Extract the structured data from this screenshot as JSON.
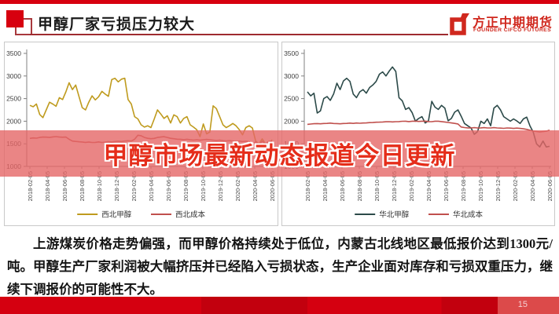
{
  "header": {
    "title": "甲醇厂家亏损压力较大",
    "logo_name": "方正中期期货",
    "logo_subtitle": "FOUNDER CIFCO FUTURES",
    "accent_color": "#d7000f"
  },
  "overlay": {
    "text": "甲醇市场最新动态报道今日更新",
    "text_color": "#e52d1a",
    "band_color": "rgba(229,103,103,0.80)"
  },
  "body": {
    "paragraph": "上游煤炭价格走势偏强，而甲醇价格持续处于低位，内蒙古北线地区最低报价达到1300元/吨。甲醇生产厂家利润被大幅挤压并已经陷入亏损状态，生产企业面对库存和亏损双重压力，继续下调报价的可能性不大。"
  },
  "footer": {
    "page_number": "15"
  },
  "chart_data": [
    {
      "type": "line",
      "title": "",
      "xlabel": "",
      "ylabel": "",
      "ylim": [
        1000,
        3500
      ],
      "yticks": [
        3500,
        3000,
        2500,
        2000,
        1500,
        1000
      ],
      "grid": false,
      "legend_position": "bottom",
      "x": [
        "2018-02-05",
        "2018-04-05",
        "2018-06-05",
        "2018-08-05",
        "2018-10-05",
        "2018-12-05",
        "2019-02-05",
        "2019-04-05",
        "2019-06-05",
        "2019-08-05",
        "2019-10-05",
        "2019-12-05",
        "2020-02-05",
        "2020-04-05",
        "2020-06-05"
      ],
      "series": [
        {
          "name": "西北甲醇",
          "color": "#bf9b1e",
          "values": [
            2350,
            2320,
            2380,
            2150,
            2080,
            2250,
            2420,
            2380,
            2330,
            2520,
            2480,
            2650,
            2850,
            2700,
            2800,
            2550,
            2300,
            2250,
            2420,
            2560,
            2470,
            2540,
            2660,
            2600,
            2550,
            2920,
            2950,
            2870,
            2930,
            2950,
            2480,
            2380,
            2100,
            2050,
            1920,
            1870,
            1900,
            1860,
            2050,
            2250,
            2160,
            2060,
            2120,
            1960,
            2140,
            2100,
            1960,
            2060,
            2100,
            1920,
            1870,
            1810,
            1660,
            1940,
            1720,
            1760,
            2340,
            2280,
            2100,
            1920,
            1860,
            1900,
            1950,
            1900,
            1810,
            1700,
            1860,
            1900,
            1850,
            1560,
            1500,
            1610,
            1500,
            1460,
            1590
          ]
        },
        {
          "name": "西北成本",
          "color": "#c0504d",
          "values": [
            1620,
            1630,
            1625,
            1640,
            1650,
            1648,
            1640,
            1652,
            1660,
            1650,
            1645,
            1650,
            1600,
            1560,
            1552,
            1545,
            1540,
            1532,
            1540,
            1530,
            1532,
            1542,
            1530,
            1538,
            1548,
            1540,
            1550,
            1558,
            1550,
            1560,
            1568,
            1560,
            1600,
            1690,
            1678,
            1640,
            1622,
            1612,
            1620,
            1640,
            1650,
            1658,
            1640,
            1622,
            1612,
            1602,
            1600,
            1592,
            1600,
            1590,
            1582,
            1590,
            1580,
            1590,
            1598,
            1590,
            1580,
            1572,
            1580,
            1570,
            1562,
            1570,
            1560,
            1552,
            1560,
            1550,
            1558,
            1550,
            1470,
            1548,
            1480,
            1555,
            1500,
            1552,
            1558
          ]
        }
      ]
    },
    {
      "type": "line",
      "title": "",
      "xlabel": "",
      "ylabel": "",
      "ylim": [
        1000,
        3500
      ],
      "yticks": [
        3500,
        3000,
        2500,
        2000,
        1500,
        1000
      ],
      "grid": false,
      "legend_position": "bottom",
      "x": [
        "2018-02-05",
        "2018-04-05",
        "2018-06-05",
        "2018-08-05",
        "2018-10-05",
        "2018-12-05",
        "2019-02-05",
        "2019-04-05",
        "2019-06-05",
        "2019-08-05",
        "2019-10-05",
        "2019-12-05",
        "2020-02-05",
        "2020-04-05",
        "2020-06-05"
      ],
      "series": [
        {
          "name": "华北甲醇",
          "color": "#2c4a49",
          "values": [
            2650,
            2560,
            2620,
            2180,
            2230,
            2500,
            2545,
            2460,
            2600,
            2840,
            2700,
            2890,
            2950,
            2880,
            2600,
            2520,
            2650,
            2700,
            2620,
            2745,
            2800,
            2880,
            3040,
            3090,
            3000,
            3110,
            3200,
            3100,
            2520,
            2450,
            2260,
            2300,
            2190,
            2000,
            2060,
            2100,
            1960,
            2010,
            2440,
            2310,
            2260,
            2350,
            2290,
            2010,
            2060,
            2200,
            2250,
            2110,
            1950,
            1900,
            1850,
            1710,
            1770,
            2000,
            1950,
            2050,
            1900,
            2290,
            2350,
            2250,
            2100,
            2050,
            2000,
            2050,
            2005,
            1950,
            2050,
            2090,
            1900,
            1760,
            1500,
            1430,
            1560,
            1430,
            1445
          ]
        },
        {
          "name": "华北成本",
          "color": "#c0504d",
          "values": [
            1930,
            1938,
            1945,
            1948,
            1942,
            1950,
            1952,
            1958,
            1950,
            1948,
            1942,
            1950,
            1952,
            1958,
            1952,
            1960,
            1955,
            1960,
            1962,
            1968,
            1970,
            1978,
            1980,
            1982,
            1988,
            1990,
            1984,
            1990,
            1992,
            1998,
            2000,
            1992,
            2000,
            2002,
            1994,
            2000,
            2002,
            1992,
            1990,
            2000,
            2000,
            1992,
            1982,
            1972,
            1962,
            1952,
            1940,
            1872,
            1860,
            1852,
            1850,
            1858,
            1850,
            1852,
            1858,
            1850,
            1850,
            1858,
            1850,
            1848,
            1842,
            1850,
            1848,
            1840,
            1848,
            1840,
            1832,
            1820,
            1800,
            1782,
            1772,
            1762,
            1770,
            1780,
            1802
          ]
        }
      ]
    }
  ]
}
